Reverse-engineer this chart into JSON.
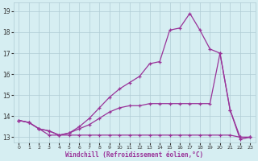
{
  "xlabel": "Windchill (Refroidissement éolien,°C)",
  "bg_color": "#d6eef2",
  "grid_color": "#b0ccd4",
  "line_color": "#993399",
  "xlim": [
    -0.5,
    23.5
  ],
  "ylim": [
    12.75,
    19.4
  ],
  "xticks": [
    0,
    1,
    2,
    3,
    4,
    5,
    6,
    7,
    8,
    9,
    10,
    11,
    12,
    13,
    14,
    15,
    16,
    17,
    18,
    19,
    20,
    21,
    22,
    23
  ],
  "yticks": [
    13,
    14,
    15,
    16,
    17,
    18,
    19
  ],
  "hours": [
    0,
    1,
    2,
    3,
    4,
    5,
    6,
    7,
    8,
    9,
    10,
    11,
    12,
    13,
    14,
    15,
    16,
    17,
    18,
    19,
    20,
    21,
    22,
    23
  ],
  "line_min": [
    13.8,
    13.7,
    13.4,
    13.1,
    13.1,
    13.1,
    13.1,
    13.1,
    13.1,
    13.1,
    13.1,
    13.1,
    13.1,
    13.1,
    13.1,
    13.1,
    13.1,
    13.1,
    13.1,
    13.1,
    13.1,
    13.1,
    13.0,
    13.0
  ],
  "line_mid": [
    13.8,
    13.7,
    13.4,
    13.3,
    13.1,
    13.2,
    13.4,
    13.6,
    13.9,
    14.2,
    14.4,
    14.5,
    14.5,
    14.6,
    14.6,
    14.6,
    14.6,
    14.6,
    14.6,
    14.6,
    17.0,
    14.3,
    13.0,
    13.0
  ],
  "line_max": [
    13.8,
    13.7,
    13.4,
    13.3,
    13.1,
    13.2,
    13.5,
    13.9,
    14.4,
    14.9,
    15.3,
    15.6,
    15.9,
    16.5,
    16.6,
    18.1,
    18.2,
    18.9,
    18.1,
    17.2,
    17.0,
    14.3,
    12.9,
    13.0
  ]
}
